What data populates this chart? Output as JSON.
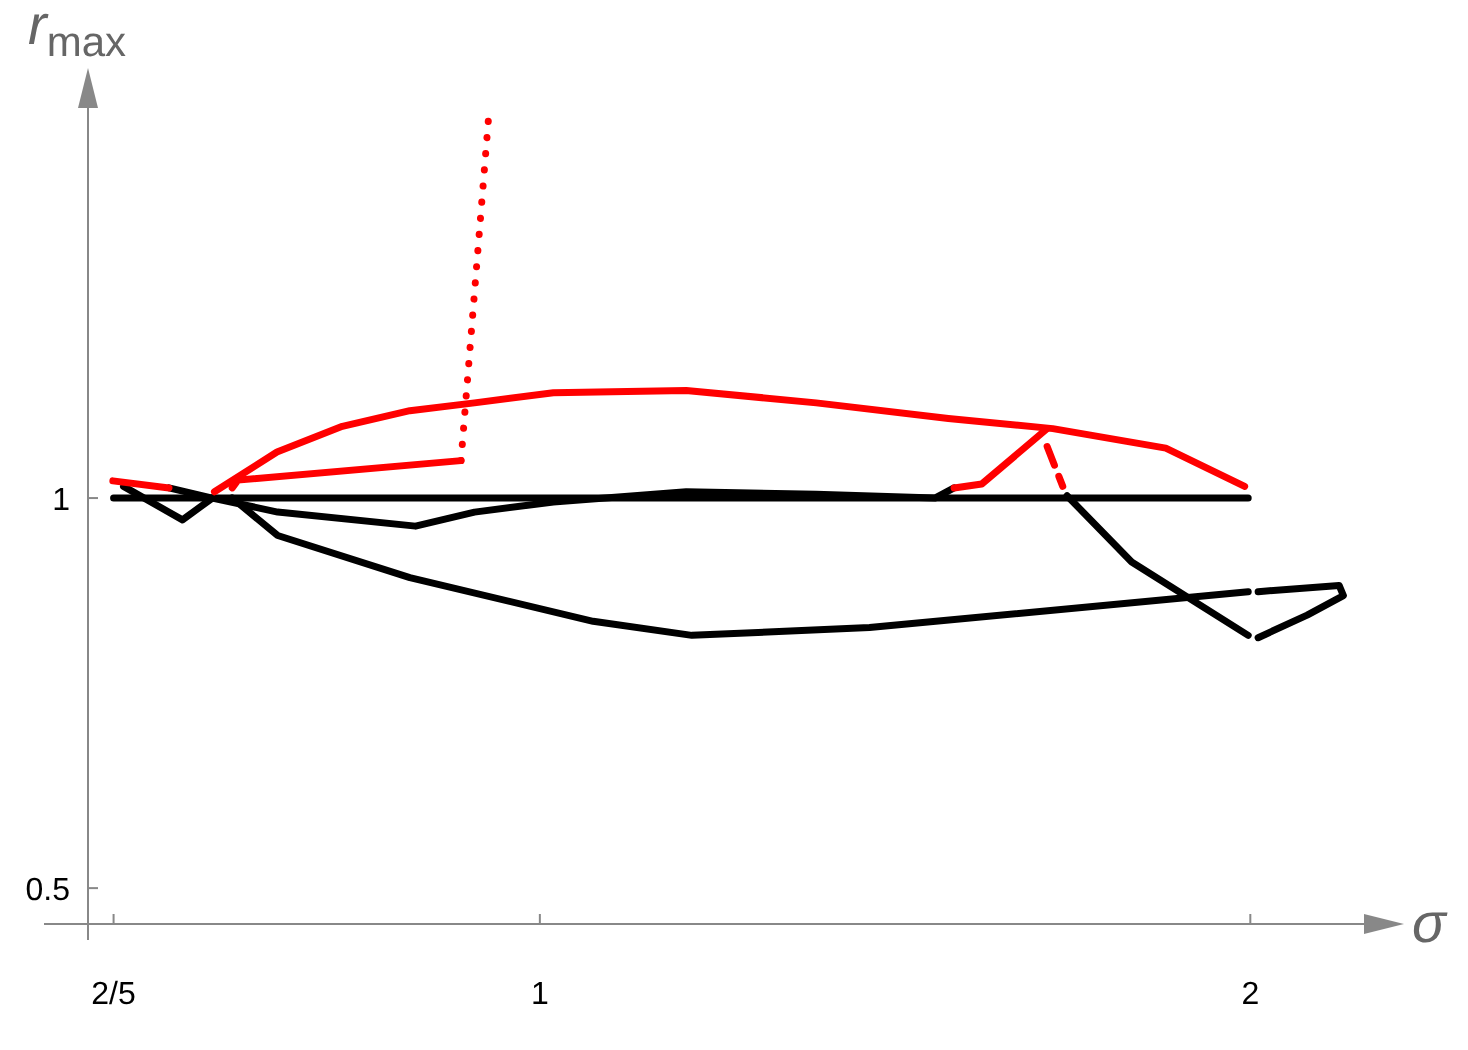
{
  "chart_data": {
    "type": "line",
    "xlabel": "σ",
    "ylabel": "r$_{max}$",
    "xlim": [
      0.364,
      2.16
    ],
    "ylim": [
      0.454,
      1.5
    ],
    "xticks": [
      {
        "value": 0.4,
        "label": "2/5"
      },
      1,
      2
    ],
    "yticks": [
      0.5,
      1
    ],
    "grid": false,
    "marker": "none",
    "line_style": "solid",
    "series": [
      {
        "color": "#000000",
        "x": [
          0.4,
          1.997
        ],
        "values": [
          1,
          1
        ]
      },
      {
        "color": "#000000",
        "x": [
          0.414,
          0.497,
          0.539
        ],
        "values": [
          1.015,
          0.972,
          1.0
        ]
      },
      {
        "color": "#000000",
        "x": [
          0.478,
          0.539,
          0.631,
          0.825,
          0.908,
          1.019,
          1.206,
          1.389,
          1.556,
          1.583
        ],
        "values": [
          1.013,
          1.0,
          0.982,
          0.964,
          0.982,
          0.995,
          1.008,
          1.005,
          1.0,
          1.013
        ]
      },
      {
        "color": "#000000",
        "x": [
          0.567,
          0.631,
          0.817,
          1.075,
          1.214,
          1.464,
          1.997
        ],
        "values": [
          1.0,
          0.952,
          0.898,
          0.842,
          0.824,
          0.834,
          0.88
        ]
      },
      {
        "color": "#000000",
        "x": [
          1.742,
          1.833,
          1.997
        ],
        "values": [
          1.003,
          0.918,
          0.824
        ]
      },
      {
        "color": "#000000",
        "x": [
          2.011,
          2.08,
          2.131,
          2.125,
          2.011
        ],
        "values": [
          0.821,
          0.85,
          0.875,
          0.888,
          0.88
        ]
      },
      {
        "color": "#ff0000",
        "x": [
          0.399,
          0.478
        ],
        "values": [
          1.022,
          1.013
        ]
      },
      {
        "color": "#ff0000",
        "x": [
          0.542,
          0.63,
          0.722,
          0.817,
          0.908,
          1.019,
          1.206,
          1.389,
          1.575,
          1.722,
          1.881,
          1.992
        ],
        "values": [
          1.008,
          1.059,
          1.092,
          1.112,
          1.122,
          1.135,
          1.138,
          1.122,
          1.102,
          1.089,
          1.064,
          1.015
        ]
      },
      {
        "color": "#ff0000",
        "x": [
          0.567,
          0.575,
          0.889
        ],
        "values": [
          1.013,
          1.023,
          1.048
        ]
      },
      {
        "color": "#ff0000",
        "x": [
          0.889,
          0.928
        ],
        "values": [
          1.048,
          1.49
        ],
        "line_style": "dotted"
      },
      {
        "color": "#ff0000",
        "x": [
          1.583,
          1.622,
          1.714
        ],
        "values": [
          1.013,
          1.018,
          1.089
        ]
      },
      {
        "color": "#ff0000",
        "x": [
          1.714,
          1.736
        ],
        "values": [
          1.066,
          1.015
        ],
        "line_style": "dashed"
      }
    ]
  }
}
